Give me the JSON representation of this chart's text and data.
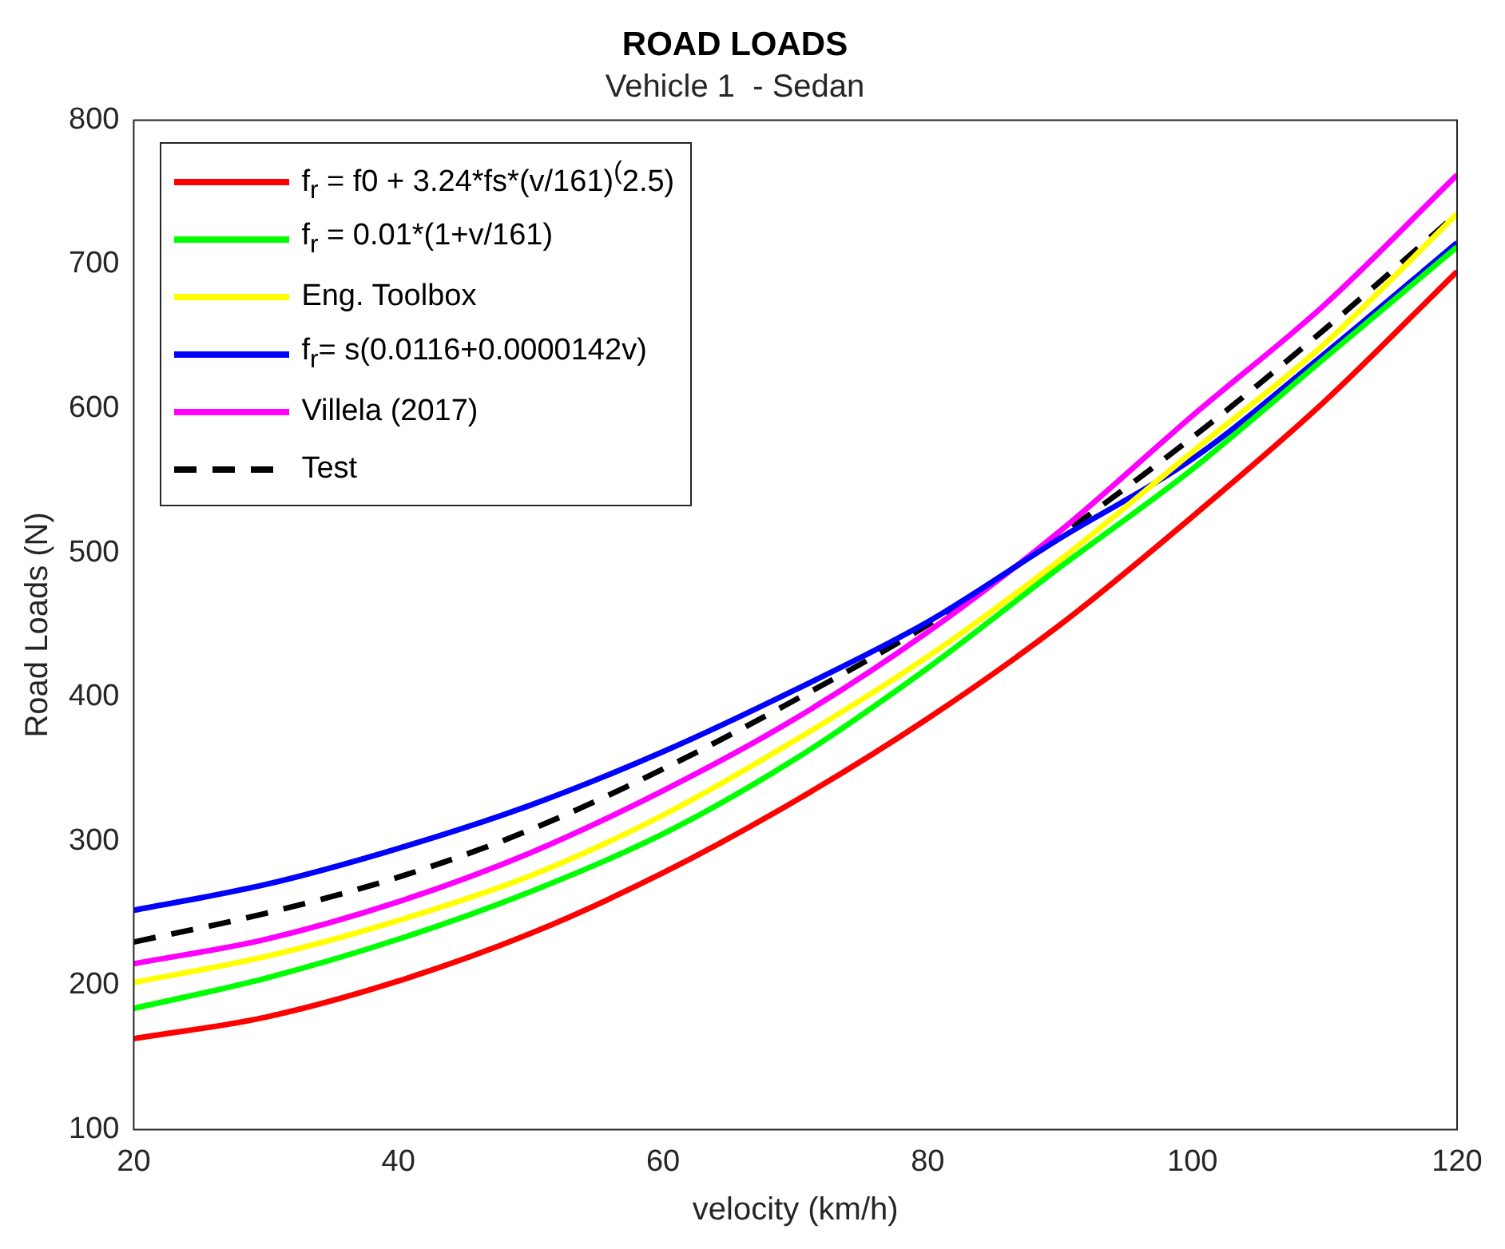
{
  "chart_data": {
    "type": "line",
    "title": "ROAD LOADS",
    "subtitle": "Vehicle 1  - Sedan",
    "xlabel": "velocity (km/h)",
    "ylabel": "Road Loads (N)",
    "x": [
      20,
      30,
      40,
      50,
      60,
      70,
      80,
      90,
      100,
      110,
      120
    ],
    "series": [
      {
        "name": "f$_{r}$ = f0 + 3.24*fs*(v/161)$^{(}$2.5)",
        "color": "#ff0000",
        "values": [
          163,
          178,
          203,
          236,
          278,
          328,
          385,
          450,
          525,
          605,
          695
        ]
      },
      {
        "name": "f$_{r}$ = 0.01*(1+v/161)",
        "color": "#00ff00",
        "values": [
          184,
          205,
          232,
          265,
          305,
          357,
          420,
          490,
          558,
          635,
          712
        ]
      },
      {
        "name": "Eng. Toolbox",
        "color": "#ffff00",
        "values": [
          202,
          220,
          245,
          276,
          318,
          370,
          428,
          495,
          570,
          645,
          735
        ]
      },
      {
        "name": "f$_{r}$= s(0.0116+0.0000142v)",
        "color": "#0000ff",
        "values": [
          252,
          270,
          295,
          325,
          362,
          405,
          452,
          510,
          565,
          638,
          715
        ]
      },
      {
        "name": "Villela (2017)",
        "color": "#ff00ff",
        "values": [
          215,
          232,
          258,
          292,
          335,
          385,
          445,
          515,
          595,
          672,
          762
        ]
      },
      {
        "name": "Test",
        "color": "#000000",
        "line_style": "dashed",
        "values": [
          230,
          250,
          275,
          308,
          350,
          398,
          450,
          512,
          580,
          655,
          735
        ]
      }
    ],
    "xlim": [
      20,
      120
    ],
    "xticks": [
      20,
      40,
      60,
      80,
      100,
      120
    ],
    "ylim": [
      100,
      800
    ],
    "yticks": [
      100,
      200,
      300,
      400,
      500,
      600,
      700,
      800
    ],
    "grid": false,
    "legend": "top left",
    "marker": "none"
  }
}
